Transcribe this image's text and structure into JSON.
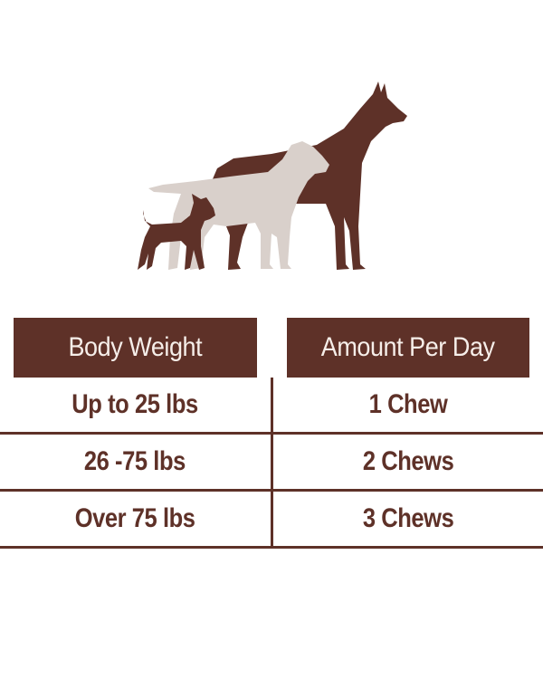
{
  "colors": {
    "brand_brown": "#5e3128",
    "light_dog": "#d9d0cb",
    "header_text": "#f6eee9"
  },
  "illustration": {
    "icons": [
      "large-dog-silhouette",
      "medium-dog-silhouette",
      "small-dog-silhouette"
    ]
  },
  "table": {
    "headers": [
      "Body Weight",
      "Amount Per Day"
    ],
    "rows": [
      {
        "weight": "Up to 25 lbs",
        "amount": "1 Chew"
      },
      {
        "weight": "26 -75 lbs",
        "amount": "2 Chews"
      },
      {
        "weight": "Over 75 lbs",
        "amount": "3 Chews"
      }
    ]
  }
}
